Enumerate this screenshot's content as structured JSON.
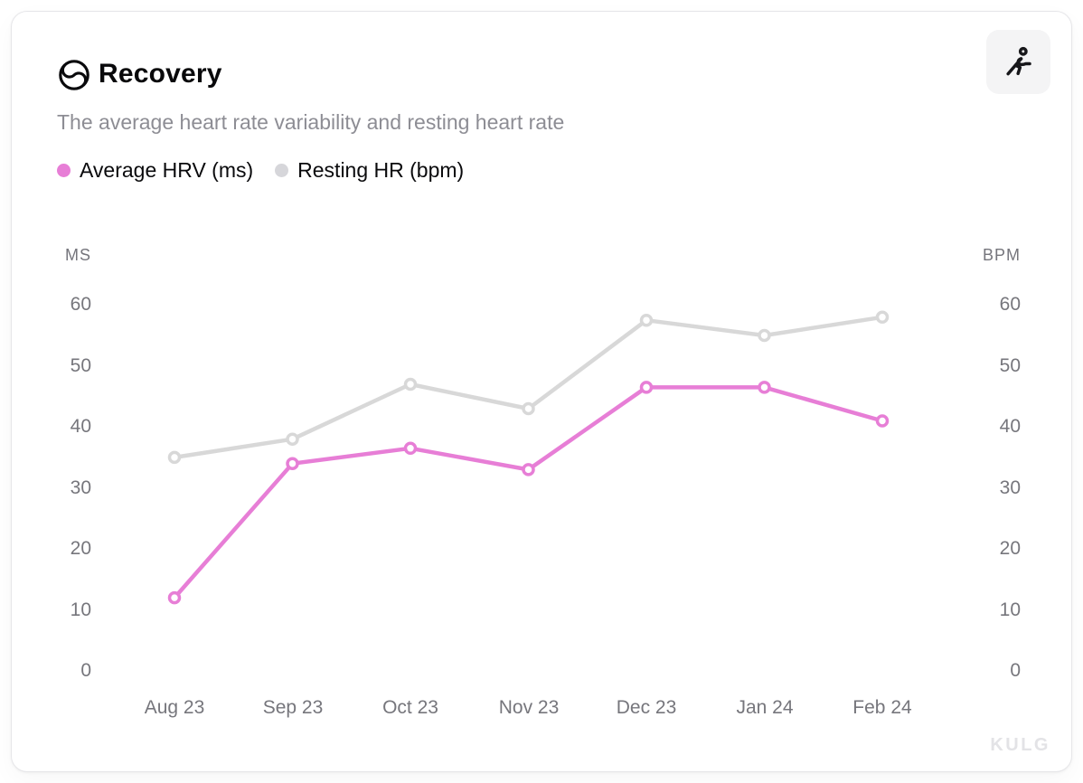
{
  "card": {
    "title": "Recovery",
    "subtitle": "The average heart rate variability and resting heart rate",
    "watermark": "KULG",
    "title_icon": "recovery-swirl-circle-icon",
    "action_icon": "runner-icon"
  },
  "legend": [
    {
      "label": "Average HRV (ms)",
      "color": "#e77ed6"
    },
    {
      "label": "Resting HR (bpm)",
      "color": "#d6d6da"
    }
  ],
  "chart_data": {
    "type": "line",
    "categories": [
      "Aug 23",
      "Sep 23",
      "Oct 23",
      "Nov 23",
      "Dec 23",
      "Jan 24",
      "Feb 24"
    ],
    "series": [
      {
        "name": "Average HRV (ms)",
        "color": "#e77ed6",
        "values": [
          12,
          34,
          36.5,
          33,
          46.5,
          46.5,
          41
        ]
      },
      {
        "name": "Resting HR (bpm)",
        "color": "#d8d8d8",
        "values": [
          35,
          38,
          47,
          43,
          57.5,
          55,
          58
        ]
      }
    ],
    "ylabel_left": "MS",
    "ylabel_right": "BPM",
    "yticks": [
      60,
      50,
      40,
      30,
      20,
      10,
      0
    ],
    "ylim": [
      0,
      65
    ],
    "grid": false,
    "legend_position": "top-left",
    "marker": "open-circle",
    "colors": {
      "hrv_pink": "#e77ed6",
      "hr_gray": "#d8d8d8",
      "tick_text": "#76767c"
    }
  }
}
